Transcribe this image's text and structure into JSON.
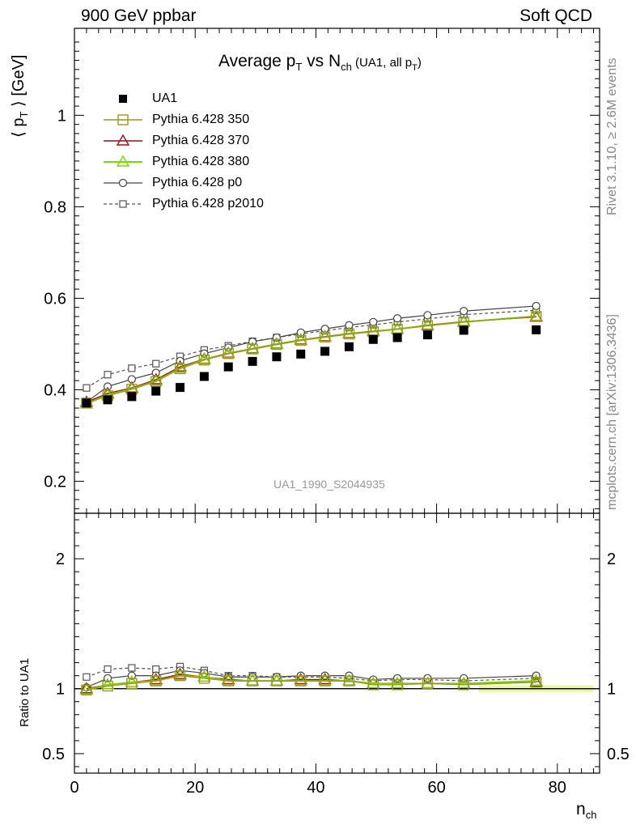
{
  "header": {
    "left": "900 GeV ppbar",
    "right": "Soft QCD"
  },
  "title": {
    "prefix": "Average p",
    "pt_sub": "T",
    "mid": " vs N",
    "nch_sub": "ch",
    "note_prefix": " (UA1, all p",
    "note_sub": "T",
    "note_suffix": ")"
  },
  "side_labels": {
    "rivet": "Rivet 3.1.10, ≥ 2.6M events",
    "mcplots": "mcplots.cern.ch [arXiv:1306.3436]"
  },
  "analysis_tag": "UA1_1990_S2044935",
  "colors": {
    "data": "#000000",
    "p350": "#9a9a1e",
    "p370": "#9b0f10",
    "p380": "#7fd600",
    "p0": "#444444",
    "p2010": "#555555",
    "band": "#e8f79a"
  },
  "chart_data": [
    {
      "type": "line",
      "title": "Average pT vs Nch (UA1, all pT)",
      "xlabel": "n_ch",
      "ylabel": "⟨ p_T ⟩ [GeV]",
      "xlim": [
        0,
        87
      ],
      "ylim": [
        0.13,
        1.19
      ],
      "x_ticks": [
        "0",
        "20",
        "40",
        "60",
        "80"
      ],
      "y_ticks": [
        "0.2",
        "0.4",
        "0.6",
        "0.8",
        "1"
      ],
      "x": [
        2,
        5.5,
        9.5,
        13.5,
        17.5,
        21.5,
        25.5,
        29.5,
        33.5,
        37.5,
        41.5,
        45.5,
        49.5,
        53.5,
        58.5,
        64.5,
        76.5
      ],
      "data": {
        "name": "UA1",
        "values": [
          0.371,
          0.378,
          0.385,
          0.397,
          0.405,
          0.429,
          0.45,
          0.462,
          0.472,
          0.478,
          0.484,
          0.494,
          0.51,
          0.514,
          0.52,
          0.53,
          0.531
        ]
      },
      "series": [
        {
          "name": "Pythia 6.428 350",
          "style": "p350",
          "values": [
            0.371,
            0.387,
            0.401,
            0.418,
            0.446,
            0.465,
            0.479,
            0.489,
            0.499,
            0.508,
            0.515,
            0.522,
            0.527,
            0.532,
            0.54,
            0.548,
            0.56
          ]
        },
        {
          "name": "Pythia 6.428 370",
          "style": "p370",
          "values": [
            0.373,
            0.392,
            0.404,
            0.422,
            0.45,
            0.467,
            0.48,
            0.49,
            0.5,
            0.509,
            0.516,
            0.523,
            0.528,
            0.533,
            0.541,
            0.549,
            0.559
          ]
        },
        {
          "name": "Pythia 6.428 380",
          "style": "p380",
          "values": [
            0.369,
            0.389,
            0.402,
            0.419,
            0.447,
            0.466,
            0.479,
            0.489,
            0.499,
            0.508,
            0.515,
            0.522,
            0.527,
            0.533,
            0.54,
            0.548,
            0.561
          ]
        },
        {
          "name": "Pythia 6.428 p0",
          "style": "p0",
          "values": [
            0.373,
            0.407,
            0.423,
            0.437,
            0.463,
            0.479,
            0.492,
            0.505,
            0.514,
            0.525,
            0.533,
            0.541,
            0.548,
            0.556,
            0.563,
            0.572,
            0.583
          ]
        },
        {
          "name": "Pythia 6.428 p2010",
          "style": "p2010",
          "values": [
            0.404,
            0.433,
            0.447,
            0.457,
            0.473,
            0.487,
            0.496,
            0.506,
            0.514,
            0.522,
            0.529,
            0.536,
            0.542,
            0.548,
            0.555,
            0.564,
            0.574
          ]
        }
      ],
      "legend_position": "top-left"
    },
    {
      "type": "line",
      "ylabel": "Ratio to UA1",
      "xlabel": "n_ch",
      "xlim": [
        0,
        87
      ],
      "ylim": [
        0.35,
        2.35
      ],
      "y_ticks": [
        "0.5",
        "1",
        "2"
      ],
      "x": [
        2,
        5.5,
        9.5,
        13.5,
        17.5,
        21.5,
        25.5,
        29.5,
        33.5,
        37.5,
        41.5,
        45.5,
        49.5,
        53.5,
        58.5,
        64.5,
        76.5
      ],
      "band": {
        "x_range": [
          67,
          86
        ],
        "half_width": 0.025
      },
      "series": [
        {
          "name": "Pythia 6.428 350",
          "style": "p350",
          "values": [
            0.99,
            1.02,
            1.04,
            1.06,
            1.1,
            1.08,
            1.06,
            1.06,
            1.06,
            1.06,
            1.06,
            1.06,
            1.03,
            1.03,
            1.04,
            1.03,
            1.05
          ]
        },
        {
          "name": "Pythia 6.428 370",
          "style": "p370",
          "values": [
            1.0,
            1.03,
            1.05,
            1.07,
            1.11,
            1.09,
            1.07,
            1.06,
            1.06,
            1.07,
            1.07,
            1.06,
            1.04,
            1.04,
            1.04,
            1.04,
            1.05
          ]
        },
        {
          "name": "Pythia 6.428 380",
          "style": "p380",
          "values": [
            0.99,
            1.03,
            1.05,
            1.06,
            1.1,
            1.09,
            1.06,
            1.06,
            1.06,
            1.06,
            1.06,
            1.06,
            1.04,
            1.04,
            1.04,
            1.04,
            1.06
          ]
        },
        {
          "name": "Pythia 6.428 p0",
          "style": "p0",
          "values": [
            1.01,
            1.08,
            1.1,
            1.1,
            1.14,
            1.12,
            1.09,
            1.09,
            1.09,
            1.1,
            1.1,
            1.1,
            1.07,
            1.08,
            1.08,
            1.08,
            1.1
          ]
        },
        {
          "name": "Pythia 6.428 p2010",
          "style": "p2010",
          "values": [
            1.09,
            1.15,
            1.16,
            1.15,
            1.17,
            1.14,
            1.1,
            1.1,
            1.09,
            1.09,
            1.09,
            1.08,
            1.06,
            1.07,
            1.07,
            1.06,
            1.08
          ]
        }
      ]
    }
  ]
}
